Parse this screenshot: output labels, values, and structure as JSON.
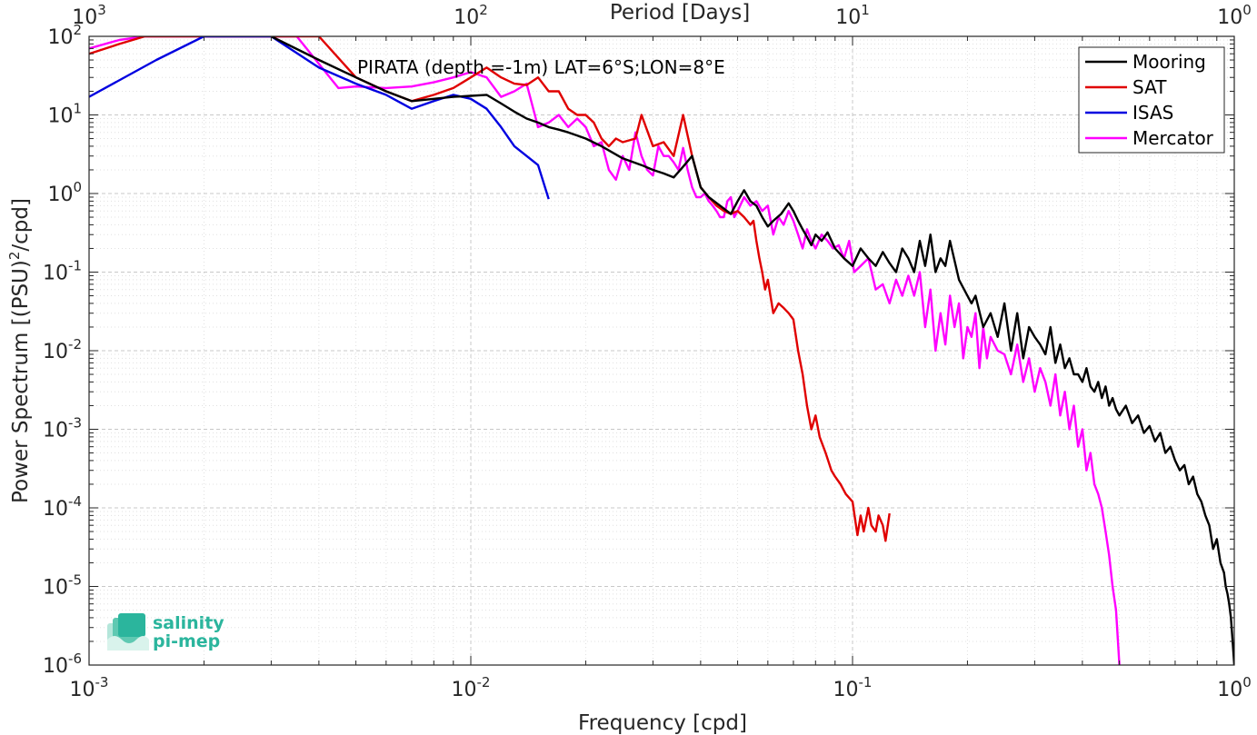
{
  "chart_data": {
    "type": "line",
    "title": "",
    "annotation": "PIRATA (depth =-1m) LAT=6°S;LON=8°E",
    "xlabel": "Frequency [cpd]",
    "ylabel_main": "Power Spectrum [(PSU)",
    "ylabel_sup": "2",
    "ylabel_tail": "/cpd]",
    "top_xlabel": "Period [Days]",
    "xscale": "log",
    "yscale": "log",
    "xlim": [
      0.001,
      1
    ],
    "ylim": [
      1e-06,
      100
    ],
    "grid": true,
    "minor_grid": true,
    "legend_position": "top-right",
    "x_ticks": [
      {
        "value": 0.001,
        "base": "10",
        "exp": "-3"
      },
      {
        "value": 0.01,
        "base": "10",
        "exp": "-2"
      },
      {
        "value": 0.1,
        "base": "10",
        "exp": "-1"
      },
      {
        "value": 1,
        "base": "10",
        "exp": "0"
      }
    ],
    "top_ticks": [
      {
        "value": 0.001,
        "base": "10",
        "exp": "3"
      },
      {
        "value": 0.01,
        "base": "10",
        "exp": "2"
      },
      {
        "value": 0.1,
        "base": "10",
        "exp": "1"
      },
      {
        "value": 1,
        "base": "10",
        "exp": "0"
      }
    ],
    "y_ticks": [
      {
        "value": 100,
        "base": "10",
        "exp": "2"
      },
      {
        "value": 10,
        "base": "10",
        "exp": "1"
      },
      {
        "value": 1,
        "base": "10",
        "exp": "0"
      },
      {
        "value": 0.1,
        "base": "10",
        "exp": "-1"
      },
      {
        "value": 0.01,
        "base": "10",
        "exp": "-2"
      },
      {
        "value": 0.001,
        "base": "10",
        "exp": "-3"
      },
      {
        "value": 0.0001,
        "base": "10",
        "exp": "-4"
      },
      {
        "value": 1e-05,
        "base": "10",
        "exp": "-5"
      },
      {
        "value": 1e-06,
        "base": "10",
        "exp": "-6"
      }
    ],
    "series": [
      {
        "name": "Mooring",
        "color": "#000000",
        "x": [
          0.003,
          0.004,
          0.005,
          0.006,
          0.007,
          0.008,
          0.009,
          0.01,
          0.011,
          0.012,
          0.013,
          0.014,
          0.015,
          0.016,
          0.017,
          0.018,
          0.02,
          0.022,
          0.025,
          0.028,
          0.03,
          0.032,
          0.034,
          0.036,
          0.038,
          0.04,
          0.042,
          0.045,
          0.048,
          0.05,
          0.052,
          0.054,
          0.056,
          0.058,
          0.06,
          0.062,
          0.065,
          0.068,
          0.07,
          0.072,
          0.074,
          0.076,
          0.078,
          0.08,
          0.083,
          0.086,
          0.09,
          0.095,
          0.1,
          0.105,
          0.11,
          0.115,
          0.12,
          0.125,
          0.13,
          0.135,
          0.14,
          0.145,
          0.15,
          0.155,
          0.16,
          0.165,
          0.17,
          0.175,
          0.18,
          0.19,
          0.2,
          0.205,
          0.21,
          0.22,
          0.23,
          0.24,
          0.25,
          0.26,
          0.27,
          0.28,
          0.29,
          0.3,
          0.31,
          0.32,
          0.33,
          0.34,
          0.35,
          0.36,
          0.37,
          0.38,
          0.39,
          0.4,
          0.41,
          0.42,
          0.43,
          0.44,
          0.45,
          0.46,
          0.47,
          0.48,
          0.49,
          0.5,
          0.52,
          0.54,
          0.56,
          0.58,
          0.6,
          0.62,
          0.64,
          0.66,
          0.68,
          0.7,
          0.72,
          0.74,
          0.76,
          0.78,
          0.8,
          0.82,
          0.84,
          0.86,
          0.88,
          0.9,
          0.92,
          0.94,
          0.95,
          0.96,
          0.97,
          0.98,
          0.99,
          1.0
        ],
        "y": [
          100,
          50,
          30,
          20,
          15,
          16,
          17,
          17.5,
          18,
          14,
          11,
          9,
          8,
          7,
          6.5,
          6,
          5,
          4,
          2.8,
          2.3,
          2,
          1.8,
          1.6,
          2.2,
          3,
          1.2,
          0.9,
          0.7,
          0.55,
          0.8,
          1.1,
          0.8,
          0.7,
          0.5,
          0.38,
          0.45,
          0.55,
          0.75,
          0.6,
          0.45,
          0.35,
          0.28,
          0.22,
          0.3,
          0.25,
          0.32,
          0.2,
          0.15,
          0.12,
          0.2,
          0.15,
          0.12,
          0.18,
          0.13,
          0.1,
          0.2,
          0.15,
          0.1,
          0.25,
          0.12,
          0.3,
          0.1,
          0.15,
          0.12,
          0.25,
          0.08,
          0.05,
          0.04,
          0.05,
          0.02,
          0.03,
          0.015,
          0.04,
          0.01,
          0.03,
          0.008,
          0.02,
          0.015,
          0.012,
          0.009,
          0.02,
          0.007,
          0.012,
          0.006,
          0.008,
          0.005,
          0.005,
          0.004,
          0.006,
          0.0035,
          0.003,
          0.004,
          0.0025,
          0.0035,
          0.002,
          0.0025,
          0.0018,
          0.0015,
          0.002,
          0.0012,
          0.0015,
          0.0009,
          0.0011,
          0.0007,
          0.0009,
          0.0005,
          0.0006,
          0.0004,
          0.0003,
          0.00035,
          0.0002,
          0.00025,
          0.00015,
          0.00012,
          8e-05,
          6e-05,
          3e-05,
          4e-05,
          2e-05,
          1.5e-05,
          1e-05,
          8e-06,
          6e-06,
          4e-06,
          2e-06,
          1e-06
        ]
      },
      {
        "name": "SAT",
        "color": "#e00000",
        "x": [
          0.001,
          0.0012,
          0.0014,
          0.004,
          0.005,
          0.006,
          0.007,
          0.008,
          0.009,
          0.01,
          0.011,
          0.012,
          0.013,
          0.014,
          0.015,
          0.016,
          0.017,
          0.018,
          0.019,
          0.02,
          0.021,
          0.022,
          0.023,
          0.024,
          0.025,
          0.027,
          0.028,
          0.03,
          0.032,
          0.034,
          0.036,
          0.038,
          0.04,
          0.042,
          0.044,
          0.046,
          0.048,
          0.05,
          0.052,
          0.054,
          0.055,
          0.056,
          0.057,
          0.058,
          0.059,
          0.06,
          0.062,
          0.064,
          0.066,
          0.068,
          0.07,
          0.072,
          0.074,
          0.076,
          0.078,
          0.08,
          0.082,
          0.085,
          0.088,
          0.09,
          0.093,
          0.096,
          0.1,
          0.103,
          0.105,
          0.107,
          0.11,
          0.112,
          0.115,
          0.117,
          0.12,
          0.122,
          0.125
        ],
        "y": [
          60,
          80,
          100,
          100,
          30,
          20,
          15,
          18,
          22,
          30,
          40,
          30,
          25,
          24,
          30,
          20,
          20,
          12,
          10,
          10,
          8,
          5,
          4,
          5,
          4.5,
          5,
          10,
          4,
          4.5,
          3,
          10,
          3,
          1.2,
          0.9,
          0.7,
          0.6,
          0.55,
          0.6,
          0.5,
          0.4,
          0.45,
          0.25,
          0.15,
          0.1,
          0.06,
          0.08,
          0.03,
          0.04,
          0.035,
          0.03,
          0.025,
          0.01,
          0.005,
          0.002,
          0.001,
          0.0015,
          0.0008,
          0.0005,
          0.0003,
          0.00025,
          0.0002,
          0.00015,
          0.00012,
          4.5e-05,
          8e-05,
          5e-05,
          0.0001,
          6e-05,
          5e-05,
          8e-05,
          6e-05,
          3.8e-05,
          8.5e-05
        ]
      },
      {
        "name": "ISAS",
        "color": "#0000e0",
        "x": [
          0.001,
          0.0015,
          0.002,
          0.003,
          0.004,
          0.005,
          0.006,
          0.007,
          0.008,
          0.009,
          0.01,
          0.011,
          0.012,
          0.013,
          0.014,
          0.015,
          0.016
        ],
        "y": [
          17,
          50,
          100,
          100,
          40,
          25,
          18,
          12,
          15,
          18,
          16,
          12,
          7,
          4,
          3,
          2.3,
          0.85
        ]
      },
      {
        "name": "Mercator",
        "color": "#ff00ff",
        "x": [
          0.001,
          0.0012,
          0.0014,
          0.0035,
          0.0045,
          0.005,
          0.006,
          0.007,
          0.008,
          0.009,
          0.01,
          0.011,
          0.012,
          0.013,
          0.014,
          0.015,
          0.016,
          0.017,
          0.018,
          0.019,
          0.02,
          0.021,
          0.022,
          0.023,
          0.024,
          0.025,
          0.026,
          0.027,
          0.028,
          0.029,
          0.03,
          0.031,
          0.032,
          0.033,
          0.034,
          0.035,
          0.036,
          0.037,
          0.038,
          0.039,
          0.04,
          0.041,
          0.042,
          0.043,
          0.044,
          0.045,
          0.046,
          0.047,
          0.048,
          0.049,
          0.05,
          0.052,
          0.054,
          0.056,
          0.058,
          0.06,
          0.062,
          0.064,
          0.066,
          0.068,
          0.07,
          0.072,
          0.074,
          0.076,
          0.078,
          0.08,
          0.083,
          0.086,
          0.089,
          0.092,
          0.095,
          0.098,
          0.101,
          0.105,
          0.11,
          0.115,
          0.12,
          0.125,
          0.13,
          0.135,
          0.14,
          0.145,
          0.15,
          0.155,
          0.16,
          0.165,
          0.17,
          0.175,
          0.18,
          0.185,
          0.19,
          0.195,
          0.2,
          0.205,
          0.21,
          0.215,
          0.22,
          0.225,
          0.23,
          0.24,
          0.25,
          0.26,
          0.27,
          0.28,
          0.29,
          0.3,
          0.31,
          0.32,
          0.33,
          0.34,
          0.35,
          0.36,
          0.37,
          0.38,
          0.39,
          0.4,
          0.41,
          0.42,
          0.43,
          0.44,
          0.45,
          0.46,
          0.47,
          0.48,
          0.49,
          0.5
        ],
        "y": [
          70,
          90,
          100,
          100,
          22,
          23,
          22,
          23,
          26,
          30,
          35,
          30,
          17,
          20,
          25,
          7,
          8,
          10,
          7,
          9,
          7,
          4,
          4.5,
          2,
          1.5,
          3,
          2,
          6,
          3,
          2,
          1.7,
          4,
          3,
          3,
          2.5,
          2,
          3.8,
          2,
          1.2,
          0.9,
          0.9,
          1,
          0.8,
          0.7,
          0.6,
          0.5,
          0.5,
          0.8,
          0.9,
          0.5,
          0.6,
          0.9,
          0.7,
          0.8,
          0.6,
          0.7,
          0.3,
          0.5,
          0.4,
          0.6,
          0.45,
          0.3,
          0.2,
          0.35,
          0.25,
          0.2,
          0.3,
          0.25,
          0.2,
          0.22,
          0.15,
          0.25,
          0.1,
          0.12,
          0.15,
          0.06,
          0.07,
          0.04,
          0.08,
          0.05,
          0.09,
          0.05,
          0.1,
          0.02,
          0.06,
          0.01,
          0.03,
          0.012,
          0.05,
          0.02,
          0.04,
          0.008,
          0.02,
          0.015,
          0.03,
          0.006,
          0.02,
          0.008,
          0.015,
          0.01,
          0.009,
          0.005,
          0.012,
          0.004,
          0.008,
          0.003,
          0.006,
          0.004,
          0.002,
          0.005,
          0.0015,
          0.003,
          0.001,
          0.002,
          0.0006,
          0.001,
          0.0003,
          0.0005,
          0.0002,
          0.00015,
          0.0001,
          5e-05,
          2.5e-05,
          1e-05,
          5e-06,
          1e-06
        ]
      }
    ]
  },
  "logo": {
    "line1": "salinity",
    "line2": "pi-mep",
    "color": "#2bb59d"
  }
}
